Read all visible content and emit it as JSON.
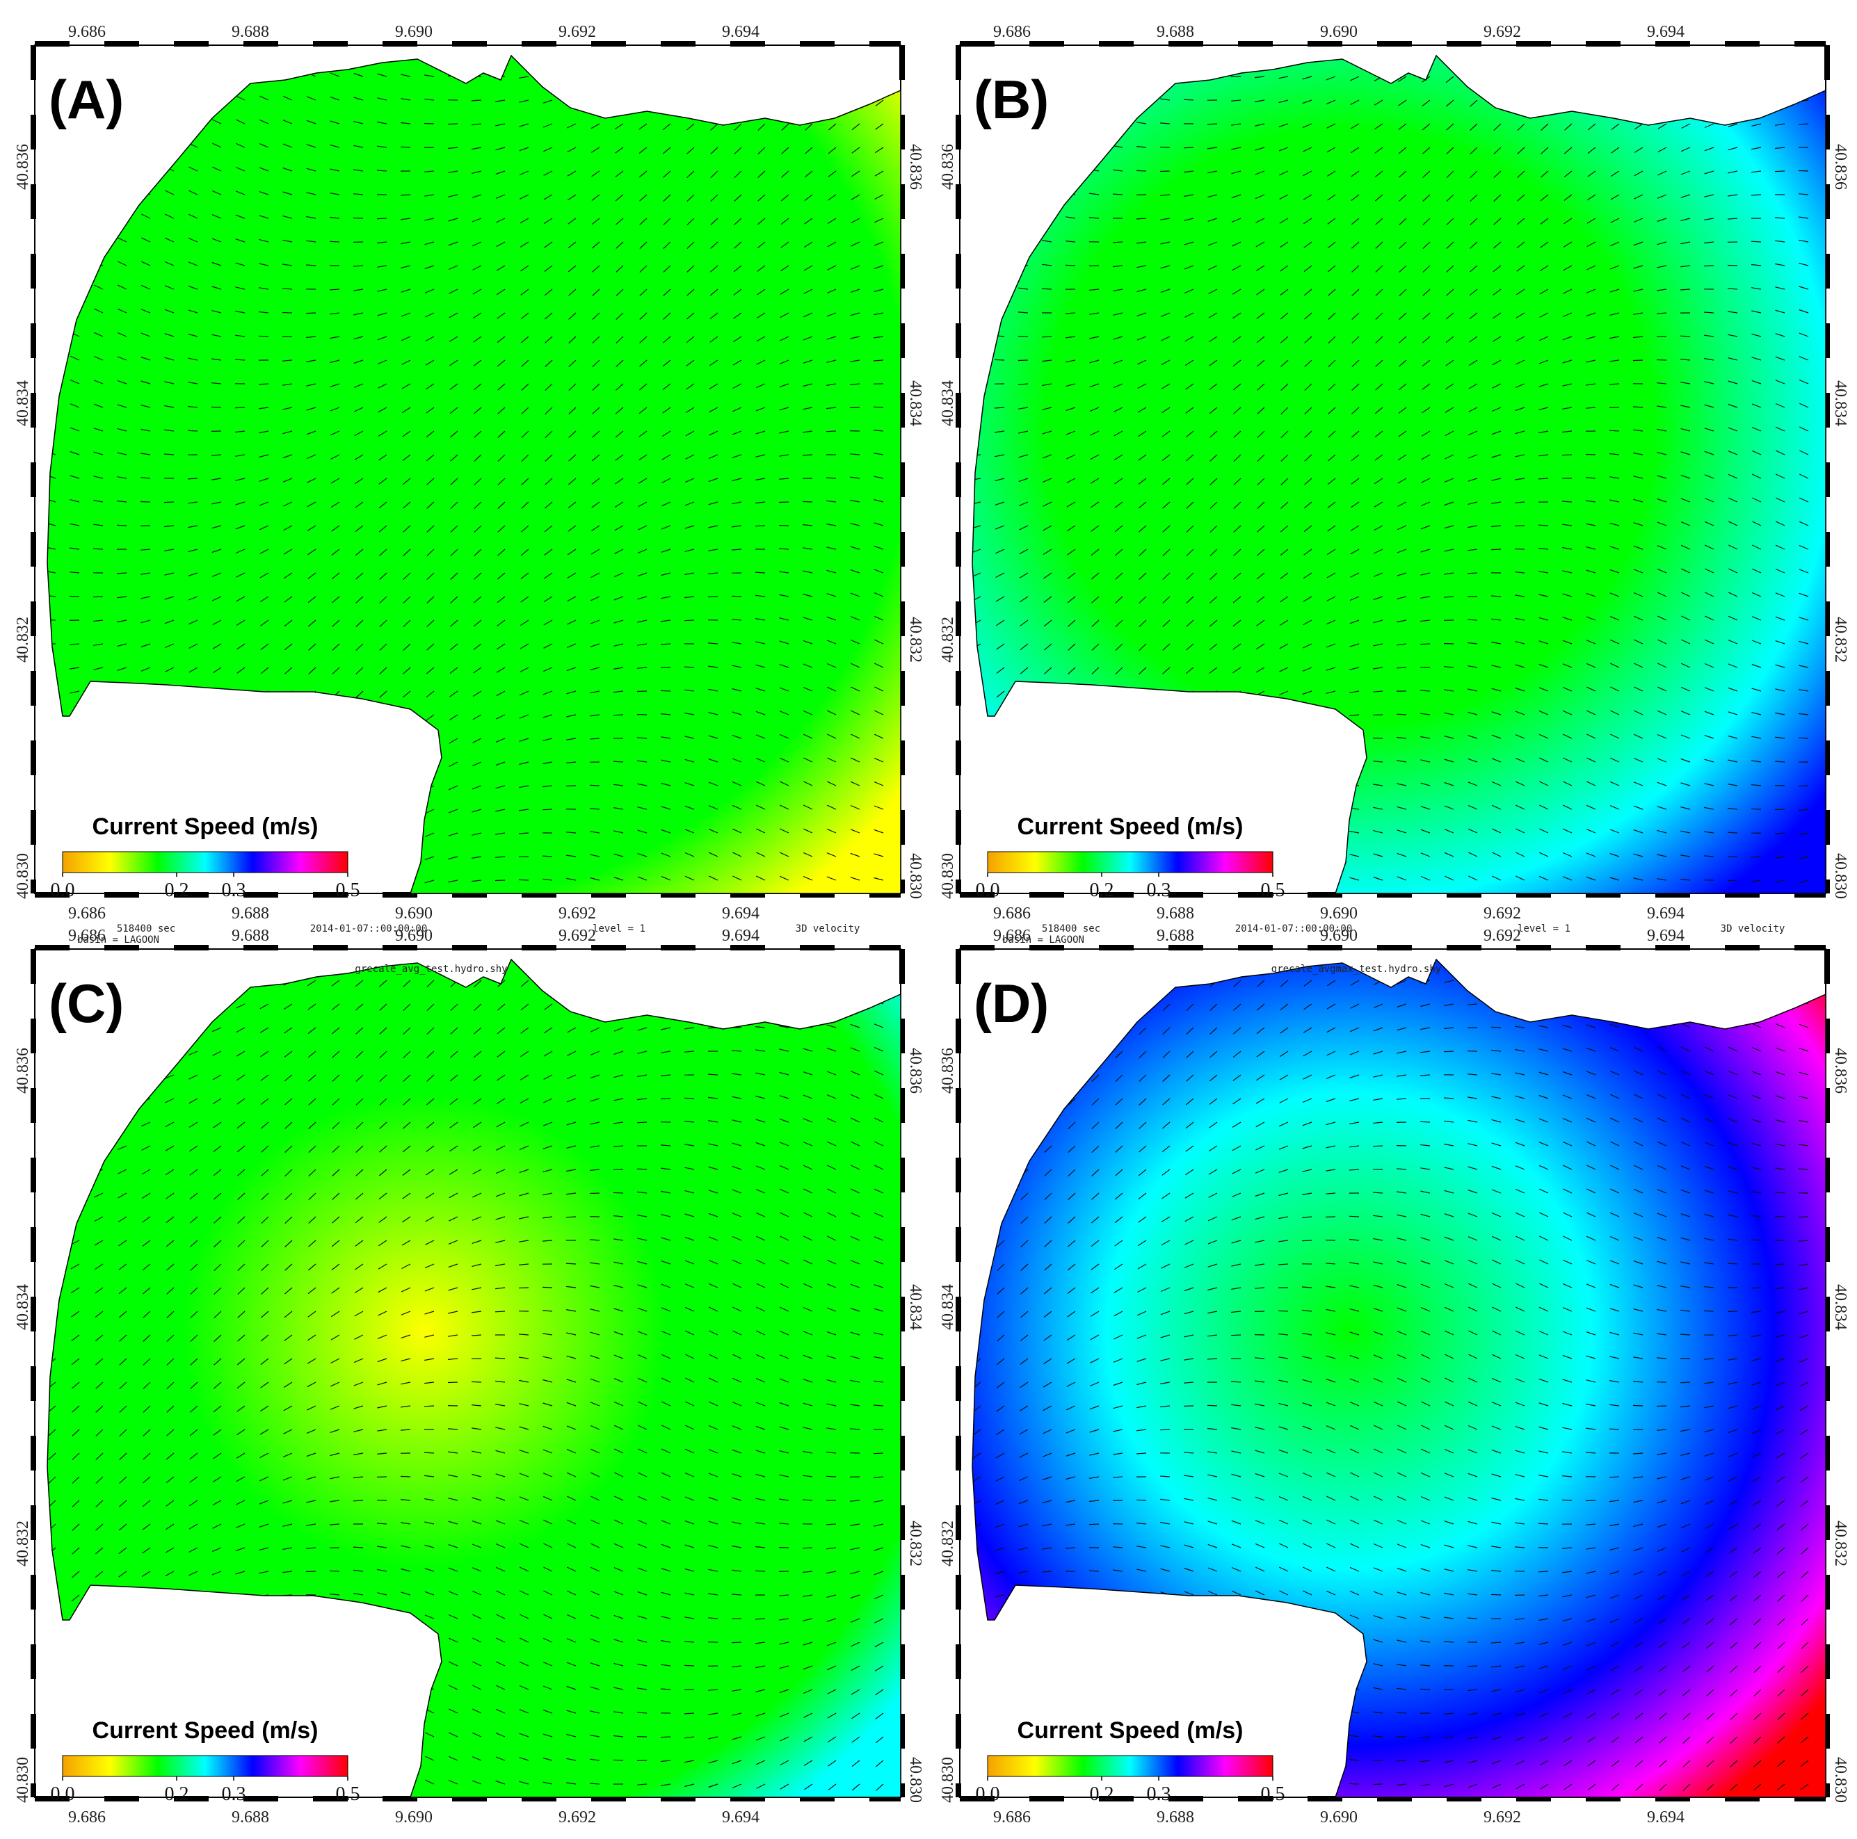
{
  "axes": {
    "x_ticks": [
      "9.686",
      "9.688",
      "9.690",
      "9.692",
      "9.694"
    ],
    "y_ticks": [
      "40.830",
      "40.832",
      "40.834",
      "40.836"
    ]
  },
  "colorbar": {
    "title": "Current Speed (m/s)",
    "ticks": [
      "0.0",
      "0.2",
      "0.3",
      "0.5"
    ],
    "colors": [
      "#f5a000",
      "#ffff00",
      "#00ff00",
      "#00ffff",
      "#0000ff",
      "#ff00ff",
      "#ff0000"
    ]
  },
  "panels": [
    {
      "id": "A",
      "label": "(A)",
      "header": null,
      "fill_level": 0.15
    },
    {
      "id": "B",
      "label": "(B)",
      "header": null,
      "fill_level": 0.35
    },
    {
      "id": "C",
      "label": "(C)",
      "header": {
        "time": "518400 sec",
        "date": "2014-01-07::00:00:00",
        "level": "level = 1",
        "var": "3D velocity",
        "basin": "basin = LAGOON",
        "file": "grecale_avg_test.hydro.shy"
      },
      "fill_level": 0.25
    },
    {
      "id": "D",
      "label": "(D)",
      "header": {
        "time": "518400 sec",
        "date": "2014-01-07::00:00:00",
        "level": "level = 1",
        "var": "3D velocity",
        "basin": "basin = LAGOON",
        "file": "grecale_avgmax_test.hydro.shy"
      },
      "fill_level": 0.5
    }
  ]
}
